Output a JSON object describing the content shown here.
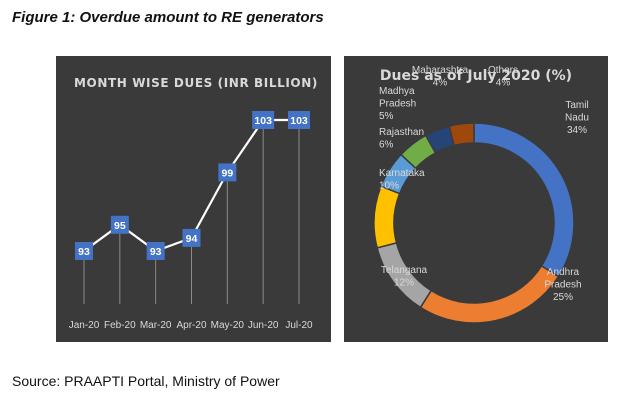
{
  "figure_title": "Figure 1: Overdue amount to RE generators",
  "source": "Source: PRAAPTI Portal, Ministry of Power",
  "chart_data": [
    {
      "type": "line",
      "title": "MONTH WISE DUES (INR BILLION)",
      "categories": [
        "Jan-20",
        "Feb-20",
        "Mar-20",
        "Apr-20",
        "May-20",
        "Jun-20",
        "Jul-20"
      ],
      "values": [
        93,
        95,
        93,
        94,
        99,
        103,
        103
      ],
      "data_labels": [
        "93",
        "95",
        "93",
        "94",
        "99",
        "103",
        "103"
      ],
      "colors": {
        "background": "#3a3a3a",
        "line": "#ffffff",
        "marker": "#4472c4",
        "text": "#d9d9d9"
      },
      "grid": false,
      "legend": "none"
    },
    {
      "type": "pie",
      "style": "donut",
      "title": "Dues as of July 2020 (%)",
      "slices": [
        {
          "label": "Tamil Nadu",
          "value": 34,
          "value_text": "34%",
          "color": "#4472c4"
        },
        {
          "label": "Andhra Pradesh",
          "value": 25,
          "value_text": "25%",
          "color": "#ed7d31"
        },
        {
          "label": "Telangana",
          "value": 12,
          "value_text": "12%",
          "color": "#a5a5a5"
        },
        {
          "label": "Karnataka",
          "value": 10,
          "value_text": "10%",
          "color": "#ffc000"
        },
        {
          "label": "Rajasthan",
          "value": 6,
          "value_text": "6%",
          "color": "#5b9bd5"
        },
        {
          "label": "Madhya Pradesh",
          "value": 5,
          "value_text": "5%",
          "color": "#70ad47"
        },
        {
          "label": "Maharashtra",
          "value": 4,
          "value_text": "4%",
          "color": "#264478"
        },
        {
          "label": "Others",
          "value": 4,
          "value_text": "4%",
          "color": "#9e480e"
        }
      ],
      "colors": {
        "background": "#3a3a3a",
        "text": "#d9d9d9"
      },
      "legend": "none"
    }
  ]
}
